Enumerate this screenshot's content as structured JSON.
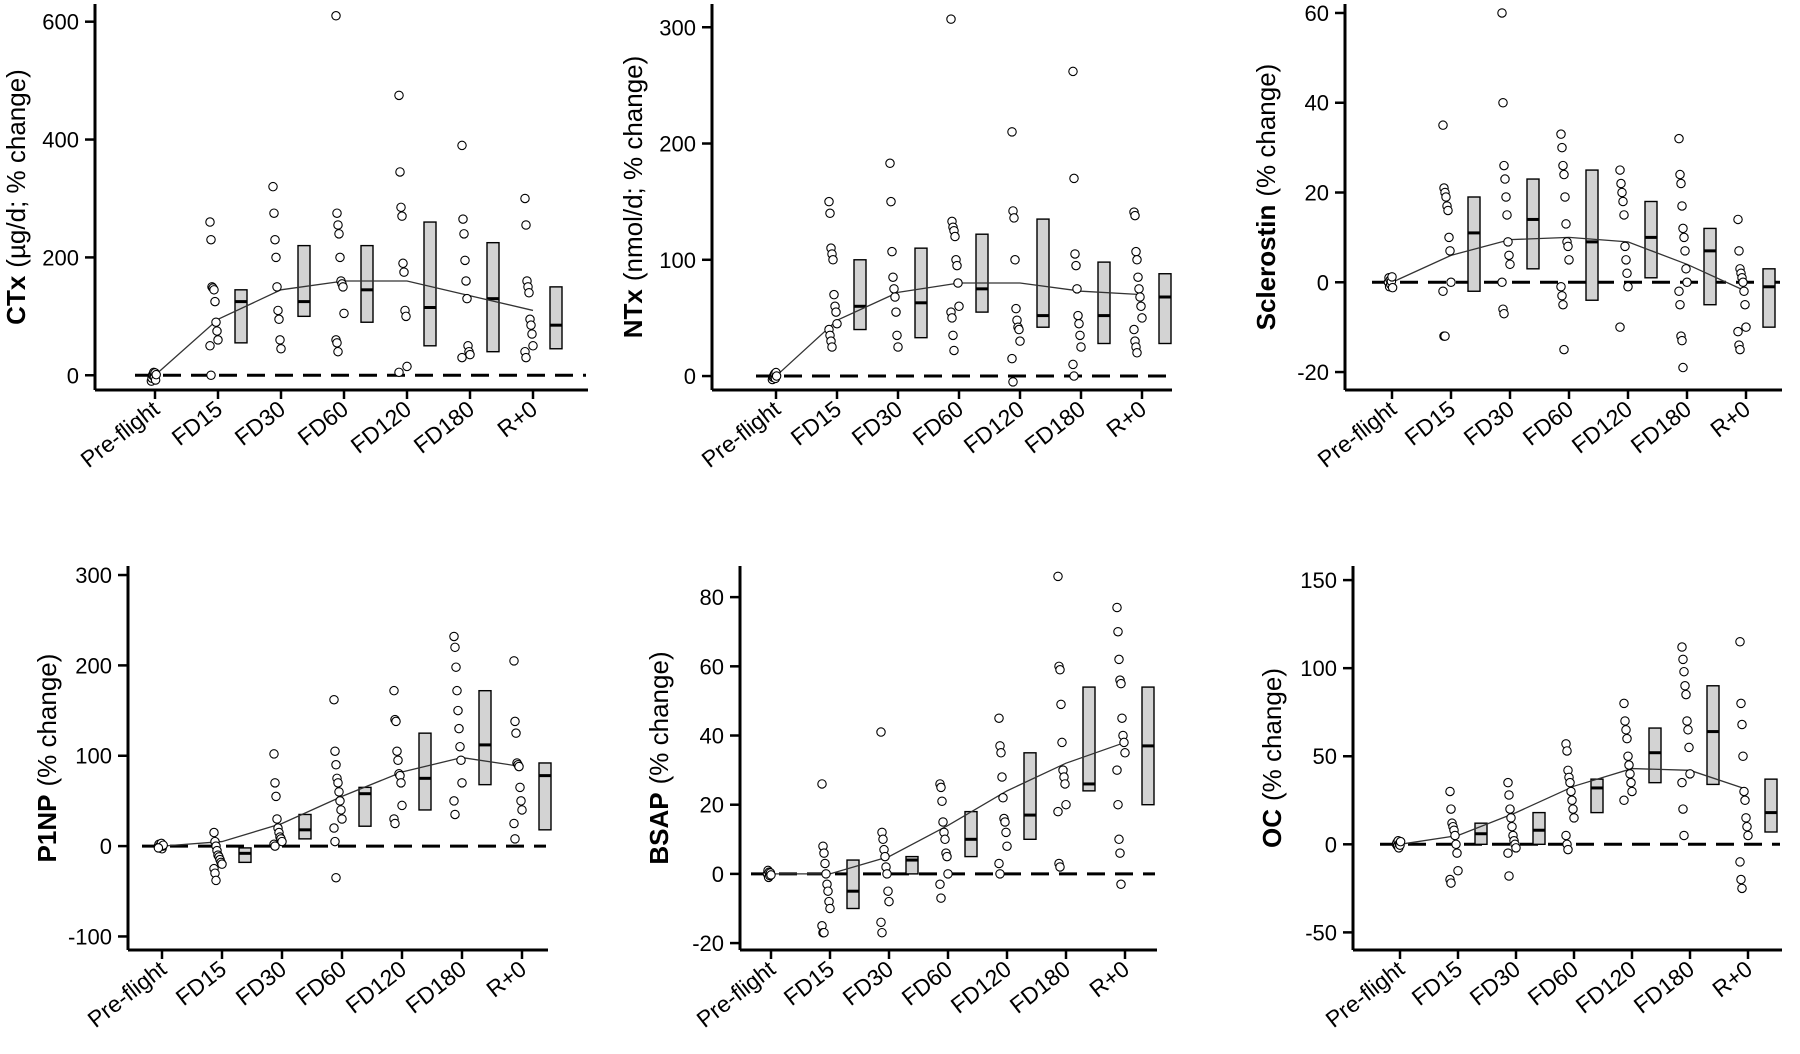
{
  "chart_data": [
    {
      "type": "box-scatter",
      "ylabel_bold": "CTx",
      "ylabel_rest": "(µg/d; % change)",
      "categories": [
        "Pre-flight",
        "FD15",
        "FD30",
        "FD60",
        "FD120",
        "FD180",
        "R+0"
      ],
      "yticks": [
        0,
        200,
        400,
        600
      ],
      "ylim": [
        -25,
        630
      ],
      "reference_line": 0,
      "trend": [
        0,
        95,
        145,
        160,
        160,
        135,
        110
      ],
      "boxes": [
        null,
        {
          "q1": 55,
          "median": 125,
          "q3": 145
        },
        {
          "q1": 100,
          "median": 125,
          "q3": 220
        },
        {
          "q1": 90,
          "median": 145,
          "q3": 220
        },
        {
          "q1": 50,
          "median": 115,
          "q3": 260
        },
        {
          "q1": 40,
          "median": 130,
          "q3": 225
        },
        {
          "q1": 45,
          "median": 85,
          "q3": 150
        }
      ],
      "points": [
        [
          -10,
          -5,
          0,
          2,
          5,
          -3,
          4,
          -8,
          1
        ],
        [
          260,
          230,
          150,
          148,
          145,
          125,
          90,
          75,
          60,
          50,
          0
        ],
        [
          320,
          275,
          230,
          200,
          150,
          110,
          95,
          60,
          45
        ],
        [
          610,
          275,
          255,
          240,
          200,
          160,
          155,
          150,
          105,
          60,
          55,
          40
        ],
        [
          475,
          345,
          285,
          270,
          190,
          175,
          110,
          100,
          15,
          5
        ],
        [
          390,
          265,
          240,
          195,
          160,
          130,
          50,
          40,
          35,
          30
        ],
        [
          300,
          255,
          160,
          150,
          140,
          95,
          85,
          70,
          50,
          40,
          30
        ]
      ]
    },
    {
      "type": "box-scatter",
      "ylabel_bold": "NTx",
      "ylabel_rest": "(nmol/d; % change)",
      "categories": [
        "Pre-flight",
        "FD15",
        "FD30",
        "FD60",
        "FD120",
        "FD180",
        "R+0"
      ],
      "yticks": [
        0,
        100,
        200,
        300
      ],
      "ylim": [
        -12,
        320
      ],
      "reference_line": 0,
      "trend": [
        0,
        48,
        72,
        80,
        80,
        73,
        70
      ],
      "boxes": [
        null,
        {
          "q1": 40,
          "median": 60,
          "q3": 100
        },
        {
          "q1": 33,
          "median": 63,
          "q3": 110
        },
        {
          "q1": 55,
          "median": 75,
          "q3": 122
        },
        {
          "q1": 42,
          "median": 52,
          "q3": 135
        },
        {
          "q1": 28,
          "median": 52,
          "q3": 98
        },
        {
          "q1": 28,
          "median": 68,
          "q3": 88
        }
      ],
      "points": [
        [
          -3,
          -1,
          0,
          1,
          2,
          -2,
          3,
          0
        ],
        [
          150,
          140,
          110,
          105,
          100,
          70,
          60,
          55,
          45,
          40,
          35,
          30,
          25
        ],
        [
          183,
          150,
          107,
          85,
          75,
          68,
          55,
          35,
          25
        ],
        [
          307,
          133,
          128,
          125,
          120,
          100,
          95,
          80,
          60,
          55,
          50,
          35,
          22
        ],
        [
          210,
          142,
          136,
          100,
          58,
          48,
          42,
          40,
          30,
          15,
          -5
        ],
        [
          262,
          170,
          105,
          95,
          75,
          52,
          45,
          35,
          25,
          10,
          0
        ],
        [
          141,
          138,
          107,
          100,
          85,
          75,
          68,
          60,
          50,
          40,
          30,
          25,
          20
        ]
      ]
    },
    {
      "type": "box-scatter",
      "ylabel_bold": "Sclerostin",
      "ylabel_rest": "(% change)",
      "categories": [
        "Pre-flight",
        "FD15",
        "FD30",
        "FD60",
        "FD120",
        "FD180",
        "R+0"
      ],
      "yticks": [
        -20,
        0,
        20,
        40,
        60
      ],
      "ylim": [
        -24,
        62
      ],
      "reference_line": 0,
      "trend": [
        0,
        6,
        9.5,
        10,
        9,
        4,
        -2
      ],
      "boxes": [
        null,
        {
          "q1": -2,
          "median": 11,
          "q3": 19
        },
        {
          "q1": 3,
          "median": 14,
          "q3": 23
        },
        {
          "q1": -4,
          "median": 9,
          "q3": 25
        },
        {
          "q1": 1,
          "median": 10,
          "q3": 18
        },
        {
          "q1": -5,
          "median": 7,
          "q3": 12
        },
        {
          "q1": -10,
          "median": -1,
          "q3": 3
        }
      ],
      "points": [
        [
          0,
          1,
          -1,
          0.5,
          -0.5,
          0.2,
          1.2,
          -1.2
        ],
        [
          35,
          21,
          20,
          19,
          17,
          16,
          10,
          7,
          0,
          -2,
          -12,
          -12
        ],
        [
          60,
          40,
          26,
          23,
          19,
          15,
          9,
          6,
          4,
          0,
          -6,
          -7
        ],
        [
          33,
          30,
          26,
          24,
          19,
          13,
          9,
          8,
          5,
          -1,
          -3,
          -5,
          -15
        ],
        [
          25,
          22,
          20,
          18,
          15,
          8,
          5,
          2,
          -1,
          -10
        ],
        [
          32,
          24,
          22,
          17,
          12,
          10,
          7,
          3,
          0,
          -2,
          -5,
          -12,
          -13,
          -19
        ],
        [
          14,
          7,
          3,
          2,
          1,
          0,
          -2,
          -5,
          -10,
          -11,
          -14,
          -15
        ]
      ]
    },
    {
      "type": "box-scatter",
      "ylabel_bold": "P1NP",
      "ylabel_rest": "(% change)",
      "categories": [
        "Pre-flight",
        "FD15",
        "FD30",
        "FD60",
        "FD120",
        "FD180",
        "R+0"
      ],
      "yticks": [
        -100,
        0,
        100,
        200,
        300
      ],
      "ylim": [
        -115,
        310
      ],
      "reference_line": 0,
      "trend": [
        0,
        5,
        25,
        55,
        82,
        98,
        88
      ],
      "boxes": [
        null,
        {
          "q1": -18,
          "median": -8,
          "q3": -2
        },
        {
          "q1": 8,
          "median": 18,
          "q3": 35
        },
        {
          "q1": 22,
          "median": 58,
          "q3": 65
        },
        {
          "q1": 40,
          "median": 75,
          "q3": 125
        },
        {
          "q1": 68,
          "median": 112,
          "q3": 172
        },
        {
          "q1": 18,
          "median": 78,
          "q3": 92
        }
      ],
      "points": [
        [
          0,
          2,
          -2,
          1,
          -1,
          3,
          -3,
          0,
          1,
          -2
        ],
        [
          15,
          5,
          0,
          -5,
          -10,
          -12,
          -15,
          -18,
          -20,
          -25,
          -30,
          -38
        ],
        [
          102,
          70,
          55,
          30,
          20,
          15,
          10,
          8,
          5,
          2,
          0
        ],
        [
          162,
          105,
          90,
          75,
          70,
          60,
          50,
          40,
          30,
          20,
          5,
          -35
        ],
        [
          172,
          140,
          138,
          105,
          95,
          80,
          78,
          70,
          45,
          30,
          25
        ],
        [
          232,
          220,
          198,
          172,
          150,
          130,
          110,
          95,
          70,
          50,
          35
        ],
        [
          205,
          138,
          125,
          92,
          90,
          88,
          65,
          50,
          40,
          25,
          8
        ]
      ]
    },
    {
      "type": "box-scatter",
      "ylabel_bold": "BSAP",
      "ylabel_rest": "(% change)",
      "categories": [
        "Pre-flight",
        "FD15",
        "FD30",
        "FD60",
        "FD120",
        "FD180",
        "R+0"
      ],
      "yticks": [
        -20,
        0,
        20,
        40,
        60,
        80
      ],
      "ylim": [
        -22,
        89
      ],
      "reference_line": 0,
      "trend": [
        0,
        0,
        5,
        14,
        24,
        32,
        38
      ],
      "boxes": [
        null,
        {
          "q1": -10,
          "median": -5,
          "q3": 4
        },
        {
          "q1": 0,
          "median": 4,
          "q3": 5
        },
        {
          "q1": 5,
          "median": 10,
          "q3": 18
        },
        {
          "q1": 10,
          "median": 17,
          "q3": 35
        },
        {
          "q1": 24,
          "median": 26,
          "q3": 54
        },
        {
          "q1": 20,
          "median": 37,
          "q3": 54
        }
      ],
      "points": [
        [
          0,
          1,
          -1,
          0.5,
          -0.5,
          0.3,
          -0.3
        ],
        [
          26,
          8,
          6,
          3,
          0,
          -3,
          -5,
          -8,
          -10,
          -15,
          -17,
          -17
        ],
        [
          41,
          12,
          10,
          7,
          5,
          2,
          0,
          -5,
          -8,
          -14,
          -17
        ],
        [
          26,
          25,
          21,
          15,
          12,
          10,
          6,
          5,
          0,
          -3,
          -7
        ],
        [
          45,
          37,
          35,
          28,
          22,
          16,
          15,
          12,
          8,
          3,
          0
        ],
        [
          86,
          60,
          59,
          49,
          38,
          30,
          28,
          26,
          20,
          18,
          3,
          2
        ],
        [
          77,
          70,
          62,
          56,
          55,
          45,
          40,
          38,
          35,
          30,
          20,
          10,
          6,
          -3
        ]
      ]
    },
    {
      "type": "box-scatter",
      "ylabel_bold": "OC",
      "ylabel_rest": "(% change)",
      "categories": [
        "Pre-flight",
        "FD15",
        "FD30",
        "FD60",
        "FD120",
        "FD180",
        "R+0"
      ],
      "yticks": [
        -50,
        0,
        50,
        100,
        150
      ],
      "ylim": [
        -60,
        158
      ],
      "reference_line": 0,
      "trend": [
        0,
        5,
        18,
        33,
        43,
        42,
        31
      ],
      "boxes": [
        null,
        {
          "q1": 0,
          "median": 6,
          "q3": 12
        },
        {
          "q1": 0,
          "median": 8,
          "q3": 18
        },
        {
          "q1": 18,
          "median": 32,
          "q3": 37
        },
        {
          "q1": 35,
          "median": 52,
          "q3": 66
        },
        {
          "q1": 34,
          "median": 64,
          "q3": 90
        },
        {
          "q1": 7,
          "median": 18,
          "q3": 37
        }
      ],
      "points": [
        [
          0,
          1,
          -1,
          2,
          -2,
          0.5,
          -0.5,
          1.5
        ],
        [
          30,
          20,
          12,
          10,
          8,
          5,
          0,
          -5,
          -15,
          -20,
          -22
        ],
        [
          35,
          28,
          20,
          15,
          10,
          5,
          2,
          0,
          -2,
          -5,
          -18
        ],
        [
          57,
          53,
          42,
          38,
          35,
          30,
          25,
          20,
          15,
          5,
          0,
          -3
        ],
        [
          80,
          70,
          65,
          60,
          50,
          45,
          40,
          35,
          30,
          25
        ],
        [
          112,
          105,
          98,
          90,
          85,
          70,
          65,
          55,
          40,
          35,
          20,
          5
        ],
        [
          115,
          80,
          68,
          50,
          30,
          25,
          15,
          10,
          5,
          -10,
          -20,
          -25
        ]
      ]
    }
  ]
}
